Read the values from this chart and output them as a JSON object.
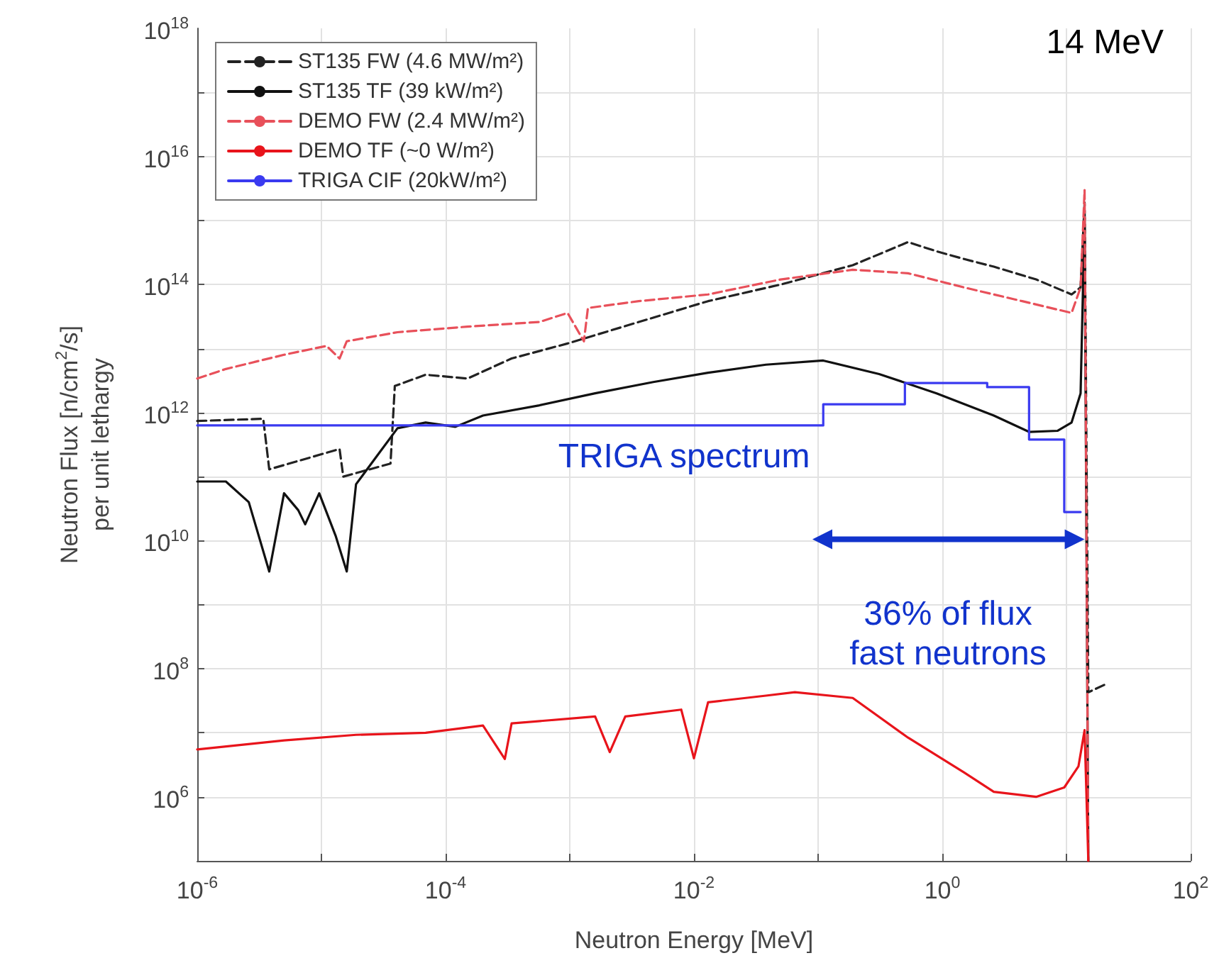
{
  "chart_data": {
    "type": "line",
    "xlabel": "Neutron Energy [MeV]",
    "ylabel": "Neutron Flux [n/cm$^{2}$/s]\nper unit lethargy",
    "log": "xy",
    "grid": true,
    "legend": "top left",
    "marker": "none",
    "xlim": [
      1e-06,
      100
    ],
    "ylim": [
      100000.0,
      1e+18
    ],
    "xticks": [
      {
        "value": 1e-06,
        "label": "10$^{-6}$"
      },
      {
        "value": 1e-05,
        "label": null
      },
      {
        "value": 0.0001,
        "label": "10$^{-4}$"
      },
      {
        "value": 0.001,
        "label": null
      },
      {
        "value": 0.01,
        "label": "10$^{-2}$"
      },
      {
        "value": 0.1,
        "label": null
      },
      {
        "value": 1,
        "label": "10$^{0}$"
      },
      {
        "value": 10,
        "label": null
      },
      {
        "value": 100,
        "label": "10$^{2}$"
      }
    ],
    "yticks": [
      {
        "value": 100000.0,
        "label": null
      },
      {
        "value": 1000000.0,
        "label": "10$^{6}$"
      },
      {
        "value": 10000000.0,
        "label": null
      },
      {
        "value": 100000000.0,
        "label": "10$^{8}$"
      },
      {
        "value": 1000000000.0,
        "label": null
      },
      {
        "value": 10000000000.0,
        "label": "10$^{10}$"
      },
      {
        "value": 100000000000.0,
        "label": null
      },
      {
        "value": 1000000000000.0,
        "label": "10$^{12}$"
      },
      {
        "value": 10000000000000.0,
        "label": null
      },
      {
        "value": 100000000000000.0,
        "label": "10$^{14}$"
      },
      {
        "value": 1000000000000000.0,
        "label": null
      },
      {
        "value": 1e+16,
        "label": "10$^{16}$"
      },
      {
        "value": 1e+17,
        "label": null
      },
      {
        "value": 1e+18,
        "label": "10$^{18}$"
      }
    ],
    "series": [
      {
        "name": "ST135 FW (4.6 MW/m²)",
        "color": "#222222",
        "line_style": "dashed",
        "x": [
          1e-06,
          3.4e-06,
          3.8e-06,
          1.4e-05,
          1.5e-05,
          3.6e-05,
          3.9e-05,
          6.9e-05,
          0.00015,
          0.00034,
          0.00096,
          0.0036,
          0.013,
          0.05,
          0.19,
          0.53,
          0.9,
          1.5,
          2.6,
          5.7,
          11,
          13,
          14,
          15,
          21
        ],
        "values": [
          740000000000.0,
          800000000000.0,
          130000000000.0,
          270000000000.0,
          100000000000.0,
          160000000000.0,
          2600000000000.0,
          3900000000000.0,
          3400000000000.0,
          7000000000000.0,
          12000000000000.0,
          26000000000000.0,
          55000000000000.0,
          100000000000000.0,
          200000000000000.0,
          460000000000000.0,
          330000000000000.0,
          250000000000000.0,
          190000000000000.0,
          120000000000000.0,
          70000000000000.0,
          90000000000000.0,
          1900000000000000.0,
          43000000.0,
          58000000.0
        ]
      },
      {
        "name": "ST135 TF (39 kW/m²)",
        "color": "#111111",
        "line_style": "solid",
        "x": [
          1e-06,
          1.7e-06,
          2.6e-06,
          3.8e-06,
          5e-06,
          6.5e-06,
          7.4e-06,
          9.6e-06,
          1.3e-05,
          1.6e-05,
          1.9e-05,
          2.8e-05,
          4.1e-05,
          6.9e-05,
          0.00012,
          0.0002,
          0.00057,
          0.0016,
          0.0047,
          0.013,
          0.038,
          0.11,
          0.31,
          0.9,
          2.6,
          5,
          8.5,
          11,
          13,
          14,
          15
        ],
        "values": [
          84000000000.0,
          84000000000.0,
          40000000000.0,
          3300000000.0,
          55000000000.0,
          30000000000.0,
          18000000000.0,
          55000000000.0,
          12000000000.0,
          3300000000.0,
          76000000000.0,
          210000000000.0,
          570000000000.0,
          700000000000.0,
          600000000000.0,
          900000000000.0,
          1300000000000.0,
          2000000000000.0,
          3000000000000.0,
          4200000000000.0,
          5600000000000.0,
          6500000000000.0,
          4000000000000.0,
          2000000000000.0,
          900000000000.0,
          500000000000.0,
          520000000000.0,
          700000000000.0,
          2000000000000.0,
          1100000000000000.0,
          100000.0
        ]
      },
      {
        "name": "DEMO FW (2.4 MW/m²)",
        "color": "#e8505a",
        "line_style": "dashed",
        "x": [
          1e-06,
          1.7e-06,
          5e-06,
          1.1e-05,
          1.4e-05,
          1.6e-05,
          4.1e-05,
          0.00015,
          0.00057,
          0.00096,
          0.0013,
          0.0014,
          0.0036,
          0.013,
          0.05,
          0.19,
          0.53,
          1.5,
          4.4,
          11,
          13,
          14,
          15
        ],
        "values": [
          3400000000000.0,
          4800000000000.0,
          8000000000000.0,
          11000000000000.0,
          7000000000000.0,
          13000000000000.0,
          18000000000000.0,
          22000000000000.0,
          26000000000000.0,
          36000000000000.0,
          13000000000000.0,
          43000000000000.0,
          55000000000000.0,
          70000000000000.0,
          120000000000000.0,
          170000000000000.0,
          150000000000000.0,
          90000000000000.0,
          55000000000000.0,
          36000000000000.0,
          90000000000000.0,
          3000000000000000.0,
          100000.0
        ]
      },
      {
        "name": "DEMO TF (~0 W/m²)",
        "color": "#e8141b",
        "line_style": "solid",
        "x": [
          1e-06,
          5e-06,
          1.9e-05,
          6.9e-05,
          0.0002,
          0.0003,
          0.00034,
          0.0016,
          0.0021,
          0.0028,
          0.0079,
          0.01,
          0.013,
          0.038,
          0.065,
          0.19,
          0.53,
          1.5,
          2.6,
          5.7,
          9.6,
          12.5,
          14,
          15
        ],
        "values": [
          5500000.0,
          7600000.0,
          9300000.0,
          10000000.0,
          13000000.0,
          3900000.0,
          14000000.0,
          18000000.0,
          5000000.0,
          18000000.0,
          23000000.0,
          4000000.0,
          30000000.0,
          38000000.0,
          43000000.0,
          35000000.0,
          8400000.0,
          2400000.0,
          1200000.0,
          1000000.0,
          1400000.0,
          3000000.0,
          11000000.0,
          100000.0
        ]
      },
      {
        "name": "TRIGA CIF (20kW/m²)",
        "color": "#3a3af0",
        "type": "step",
        "x": [
          1e-06,
          0.11,
          0.5,
          2.3,
          5,
          9.6,
          13
        ],
        "values": [
          630000000000.0,
          1350000000000.0,
          2900000000000.0,
          2500000000000.0,
          380000000000.0,
          28000000000.0,
          28000000000.0
        ]
      }
    ],
    "annotations": [
      "14 MeV",
      "TRIGA spectrum",
      "36% of flux\nfast neutrons"
    ]
  }
}
